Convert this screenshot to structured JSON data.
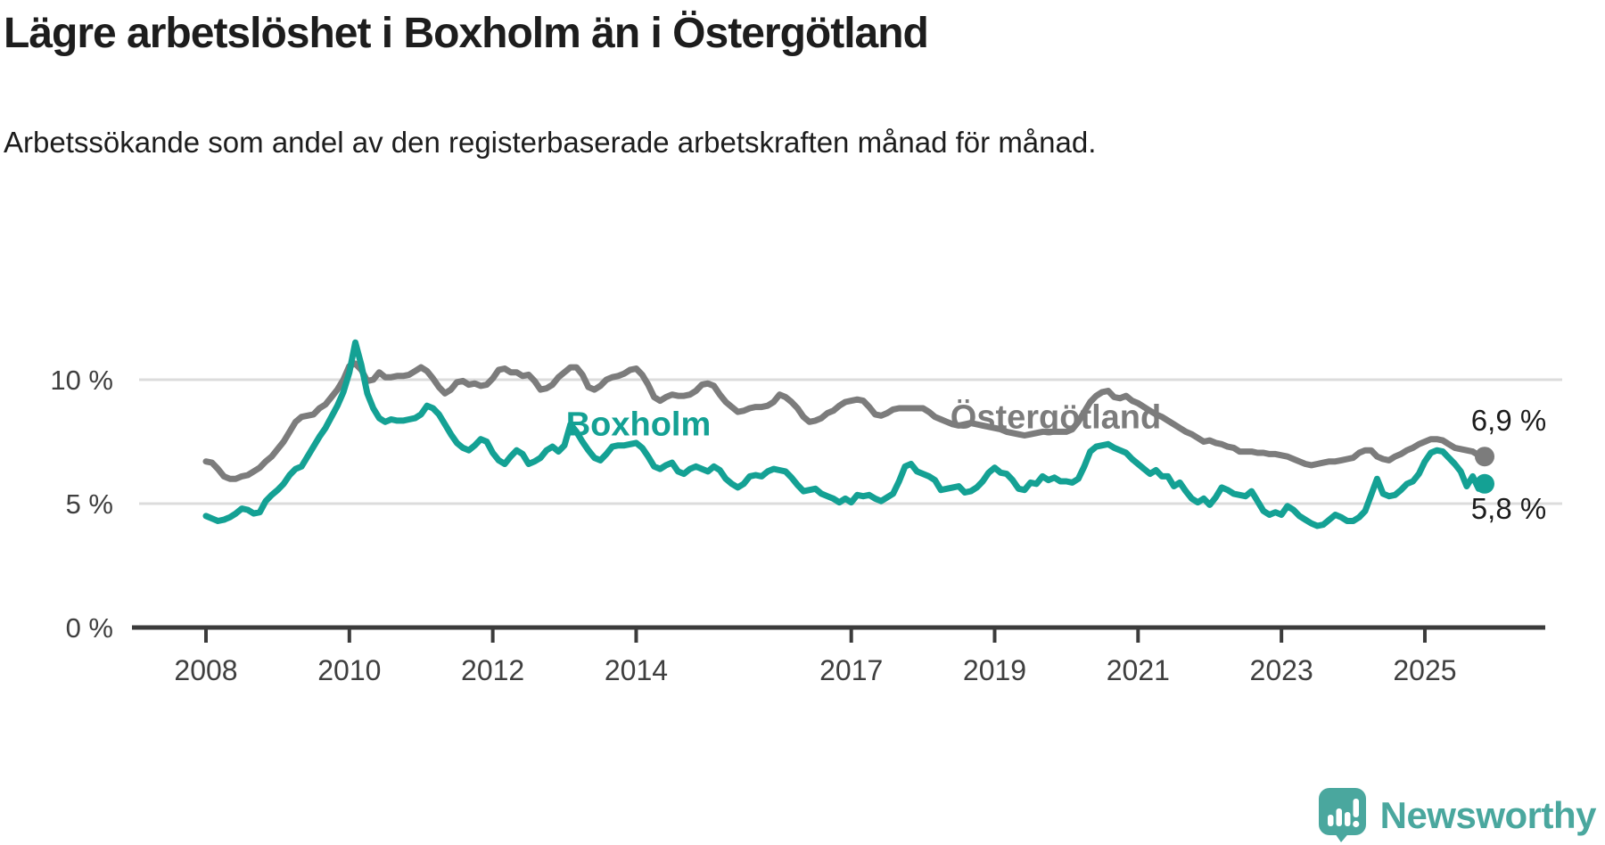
{
  "header": {
    "title": "Lägre arbetslöshet i Boxholm än i Östergötland",
    "subtitle": "Arbetssökande som andel av den registerbaserade arbetskraften månad för månad."
  },
  "colors": {
    "boxholm": "#14a194",
    "ostergotland": "#7c7c7c",
    "grid": "#dcdcdc",
    "axis": "#3b3b3b",
    "tick_text": "#3f3f3f",
    "label_text": "#1c1c1c",
    "logo": "#4aa79e"
  },
  "chart_data": {
    "type": "line",
    "title": "Lägre arbetslöshet i Boxholm än i Östergötland",
    "subtitle": "Arbetssökande som andel av den registerbaserade arbetskraften månad för månad.",
    "xlabel": "",
    "ylabel": "",
    "ylim": [
      0,
      12
    ],
    "grid": "horizontal",
    "legend_position": "inline-labels",
    "x_start": "2008-01",
    "x_end": "2025-11",
    "x_interval": "monthly",
    "yticks": [
      {
        "label": "10 %",
        "value": 10
      },
      {
        "label": "5 %",
        "value": 5
      },
      {
        "label": "0 %",
        "value": 0
      }
    ],
    "xticks": [
      {
        "label": "2008",
        "year": 2008
      },
      {
        "label": "2010",
        "year": 2010
      },
      {
        "label": "2012",
        "year": 2012
      },
      {
        "label": "2014",
        "year": 2014
      },
      {
        "label": "2017",
        "year": 2017
      },
      {
        "label": "2019",
        "year": 2019
      },
      {
        "label": "2021",
        "year": 2021
      },
      {
        "label": "2023",
        "year": 2023
      },
      {
        "label": "2025",
        "year": 2025
      }
    ],
    "series": [
      {
        "name": "Östergötland",
        "key": "ostergotland",
        "end_label": "6,9 %",
        "end_value": 6.9,
        "values": [
          6.7,
          6.65,
          6.4,
          6.1,
          6.0,
          6.0,
          6.1,
          6.15,
          6.3,
          6.45,
          6.7,
          6.9,
          7.2,
          7.5,
          7.9,
          8.3,
          8.5,
          8.55,
          8.6,
          8.85,
          9.0,
          9.3,
          9.6,
          10.0,
          10.55,
          10.65,
          10.4,
          9.95,
          10.0,
          10.3,
          10.1,
          10.1,
          10.15,
          10.15,
          10.2,
          10.35,
          10.5,
          10.35,
          10.05,
          9.7,
          9.45,
          9.6,
          9.9,
          9.95,
          9.8,
          9.85,
          9.75,
          9.8,
          10.05,
          10.4,
          10.45,
          10.3,
          10.3,
          10.15,
          10.2,
          9.95,
          9.6,
          9.65,
          9.8,
          10.1,
          10.3,
          10.5,
          10.5,
          10.2,
          9.7,
          9.6,
          9.75,
          10.0,
          10.1,
          10.15,
          10.25,
          10.4,
          10.45,
          10.2,
          9.8,
          9.3,
          9.15,
          9.3,
          9.4,
          9.35,
          9.35,
          9.4,
          9.55,
          9.8,
          9.85,
          9.75,
          9.4,
          9.1,
          8.9,
          8.7,
          8.75,
          8.85,
          8.9,
          8.9,
          8.95,
          9.1,
          9.4,
          9.3,
          9.1,
          8.85,
          8.5,
          8.3,
          8.35,
          8.45,
          8.65,
          8.75,
          8.95,
          9.1,
          9.15,
          9.2,
          9.15,
          8.9,
          8.6,
          8.55,
          8.65,
          8.8,
          8.85,
          8.85,
          8.85,
          8.85,
          8.85,
          8.7,
          8.5,
          8.4,
          8.3,
          8.2,
          8.15,
          8.2,
          8.25,
          8.2,
          8.15,
          8.1,
          8.05,
          8.0,
          7.9,
          7.85,
          7.8,
          7.75,
          7.8,
          7.85,
          7.9,
          7.9,
          7.9,
          7.9,
          7.9,
          8.0,
          8.3,
          8.7,
          9.1,
          9.35,
          9.5,
          9.55,
          9.3,
          9.25,
          9.35,
          9.15,
          9.05,
          8.9,
          8.75,
          8.6,
          8.5,
          8.35,
          8.2,
          8.05,
          7.9,
          7.8,
          7.65,
          7.5,
          7.55,
          7.45,
          7.4,
          7.3,
          7.25,
          7.1,
          7.1,
          7.1,
          7.05,
          7.05,
          7.0,
          7.0,
          6.95,
          6.9,
          6.8,
          6.7,
          6.6,
          6.55,
          6.6,
          6.65,
          6.7,
          6.7,
          6.75,
          6.8,
          6.85,
          7.05,
          7.15,
          7.15,
          6.9,
          6.8,
          6.75,
          6.9,
          7.0,
          7.15,
          7.25,
          7.4,
          7.5,
          7.6,
          7.6,
          7.55,
          7.4,
          7.25,
          7.2,
          7.15,
          7.1,
          6.95,
          6.9
        ]
      },
      {
        "name": "Boxholm",
        "key": "boxholm",
        "end_label": "5,8 %",
        "end_value": 5.8,
        "values": [
          4.5,
          4.4,
          4.3,
          4.35,
          4.45,
          4.6,
          4.8,
          4.75,
          4.6,
          4.65,
          5.1,
          5.35,
          5.55,
          5.8,
          6.15,
          6.4,
          6.5,
          6.9,
          7.3,
          7.7,
          8.05,
          8.5,
          8.95,
          9.5,
          10.3,
          11.5,
          10.6,
          9.45,
          8.85,
          8.45,
          8.3,
          8.4,
          8.35,
          8.35,
          8.4,
          8.45,
          8.6,
          8.95,
          8.85,
          8.6,
          8.2,
          7.8,
          7.45,
          7.25,
          7.15,
          7.35,
          7.6,
          7.5,
          7.05,
          6.75,
          6.6,
          6.9,
          7.15,
          7.0,
          6.6,
          6.7,
          6.85,
          7.15,
          7.3,
          7.1,
          7.35,
          8.2,
          7.9,
          7.5,
          7.15,
          6.85,
          6.75,
          7.0,
          7.3,
          7.35,
          7.35,
          7.4,
          7.45,
          7.25,
          6.9,
          6.5,
          6.4,
          6.55,
          6.65,
          6.3,
          6.2,
          6.4,
          6.5,
          6.4,
          6.3,
          6.5,
          6.35,
          6.0,
          5.8,
          5.65,
          5.8,
          6.1,
          6.15,
          6.1,
          6.3,
          6.4,
          6.35,
          6.3,
          6.05,
          5.75,
          5.5,
          5.55,
          5.6,
          5.4,
          5.3,
          5.2,
          5.05,
          5.2,
          5.05,
          5.35,
          5.3,
          5.35,
          5.2,
          5.1,
          5.25,
          5.4,
          5.9,
          6.5,
          6.6,
          6.3,
          6.2,
          6.1,
          5.95,
          5.55,
          5.6,
          5.65,
          5.7,
          5.45,
          5.5,
          5.65,
          5.9,
          6.25,
          6.45,
          6.25,
          6.2,
          5.95,
          5.6,
          5.55,
          5.85,
          5.8,
          6.1,
          5.95,
          6.05,
          5.9,
          5.9,
          5.85,
          6.0,
          6.5,
          7.1,
          7.3,
          7.35,
          7.4,
          7.25,
          7.15,
          7.05,
          6.8,
          6.6,
          6.4,
          6.2,
          6.35,
          6.1,
          6.1,
          5.7,
          5.85,
          5.5,
          5.2,
          5.05,
          5.2,
          4.95,
          5.25,
          5.65,
          5.55,
          5.4,
          5.35,
          5.3,
          5.5,
          5.1,
          4.7,
          4.55,
          4.65,
          4.55,
          4.9,
          4.75,
          4.5,
          4.35,
          4.2,
          4.1,
          4.15,
          4.35,
          4.55,
          4.45,
          4.3,
          4.3,
          4.45,
          4.7,
          5.35,
          6.0,
          5.4,
          5.3,
          5.35,
          5.55,
          5.8,
          5.9,
          6.2,
          6.7,
          7.05,
          7.15,
          7.1,
          6.85,
          6.6,
          6.3,
          5.7,
          6.1,
          5.6,
          5.8
        ]
      }
    ]
  },
  "annotations": {
    "boxholm_label": "Boxholm",
    "ostergotland_label": "Östergötland"
  },
  "footer": {
    "brand": "Newsworthy"
  }
}
